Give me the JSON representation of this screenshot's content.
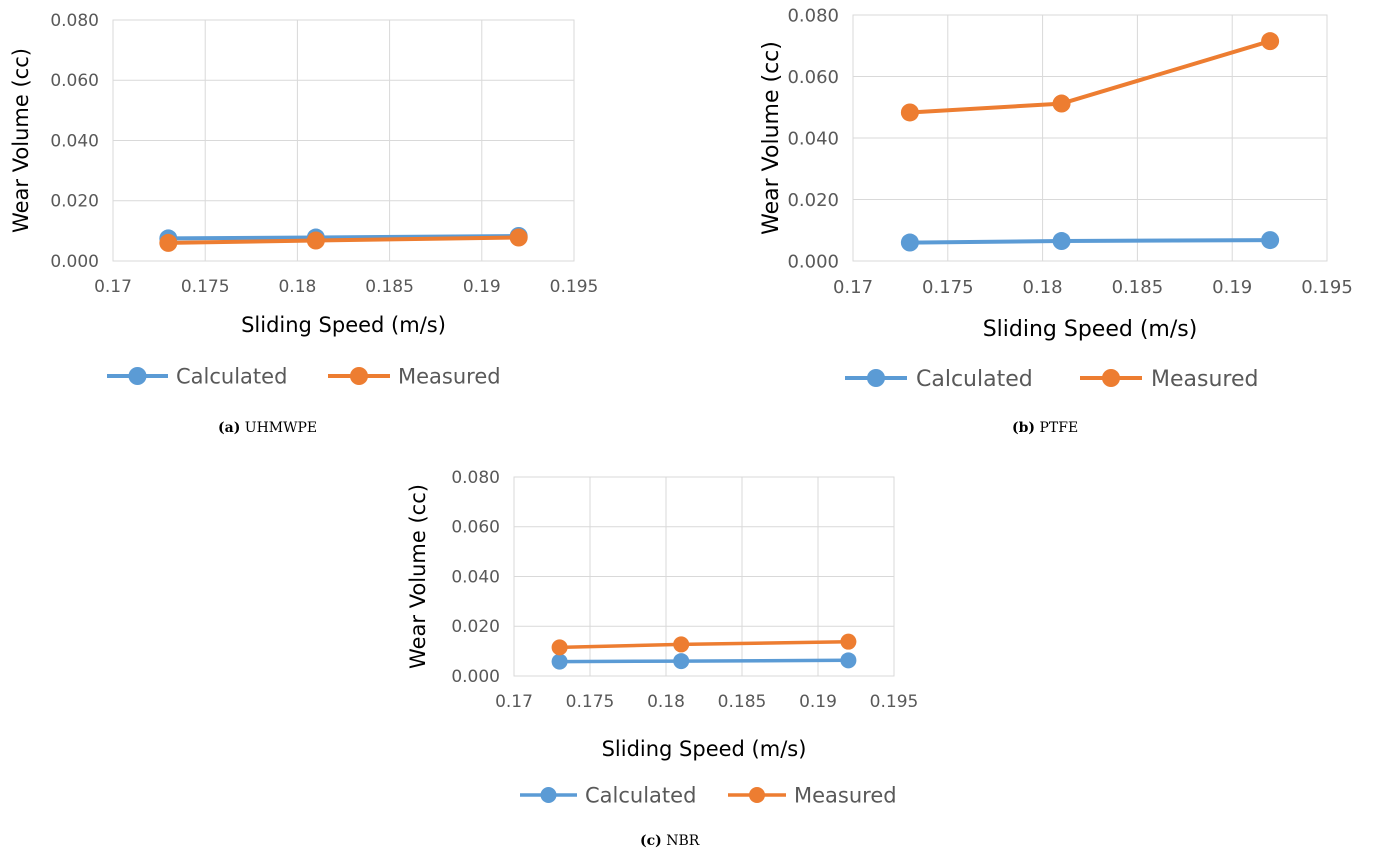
{
  "colors": {
    "calculated": "#5B9BD5",
    "measured": "#ED7D31",
    "grid": "#D9D9D9",
    "tick_text": "#595959"
  },
  "chart_data": [
    {
      "type": "line",
      "title": "",
      "xlabel": "Sliding Speed (m/s)",
      "ylabel": "Wear Volume (cc)",
      "xlim": [
        0.17,
        0.195
      ],
      "ylim": [
        0.0,
        0.08
      ],
      "x_ticks": [
        "0.17",
        "0.175",
        "0.18",
        "0.185",
        "0.19",
        "0.195"
      ],
      "y_ticks": [
        "0.000",
        "0.020",
        "0.040",
        "0.060",
        "0.080"
      ],
      "grid": true,
      "legend_position": "bottom",
      "series": [
        {
          "name": "Calculated",
          "x": [
            0.173,
            0.181,
            0.192
          ],
          "y": [
            0.0075,
            0.0078,
            0.0083
          ]
        },
        {
          "name": "Measured",
          "x": [
            0.173,
            0.181,
            0.192
          ],
          "y": [
            0.006,
            0.0068,
            0.0078
          ]
        }
      ],
      "caption_label": "(a)",
      "caption_text": "UHMWPE"
    },
    {
      "type": "line",
      "title": "",
      "xlabel": "Sliding Speed (m/s)",
      "ylabel": "Wear Volume (cc)",
      "xlim": [
        0.17,
        0.195
      ],
      "ylim": [
        0.0,
        0.08
      ],
      "x_ticks": [
        "0.17",
        "0.175",
        "0.18",
        "0.185",
        "0.19",
        "0.195"
      ],
      "y_ticks": [
        "0.000",
        "0.020",
        "0.040",
        "0.060",
        "0.080"
      ],
      "grid": true,
      "legend_position": "bottom",
      "series": [
        {
          "name": "Calculated",
          "x": [
            0.173,
            0.181,
            0.192
          ],
          "y": [
            0.006,
            0.0065,
            0.0068
          ]
        },
        {
          "name": "Measured",
          "x": [
            0.173,
            0.181,
            0.192
          ],
          "y": [
            0.0483,
            0.0512,
            0.0715
          ]
        }
      ],
      "caption_label": "(b)",
      "caption_text": "PTFE"
    },
    {
      "type": "line",
      "title": "",
      "xlabel": "Sliding Speed (m/s)",
      "ylabel": "Wear Volume (cc)",
      "xlim": [
        0.17,
        0.195
      ],
      "ylim": [
        0.0,
        0.08
      ],
      "x_ticks": [
        "0.17",
        "0.175",
        "0.18",
        "0.185",
        "0.19",
        "0.195"
      ],
      "y_ticks": [
        "0.000",
        "0.020",
        "0.040",
        "0.060",
        "0.080"
      ],
      "grid": true,
      "legend_position": "bottom",
      "series": [
        {
          "name": "Calculated",
          "x": [
            0.173,
            0.181,
            0.192
          ],
          "y": [
            0.0058,
            0.006,
            0.0063
          ]
        },
        {
          "name": "Measured",
          "x": [
            0.173,
            0.181,
            0.192
          ],
          "y": [
            0.0115,
            0.0127,
            0.0138
          ]
        }
      ],
      "caption_label": "(c)",
      "caption_text": "NBR"
    }
  ]
}
